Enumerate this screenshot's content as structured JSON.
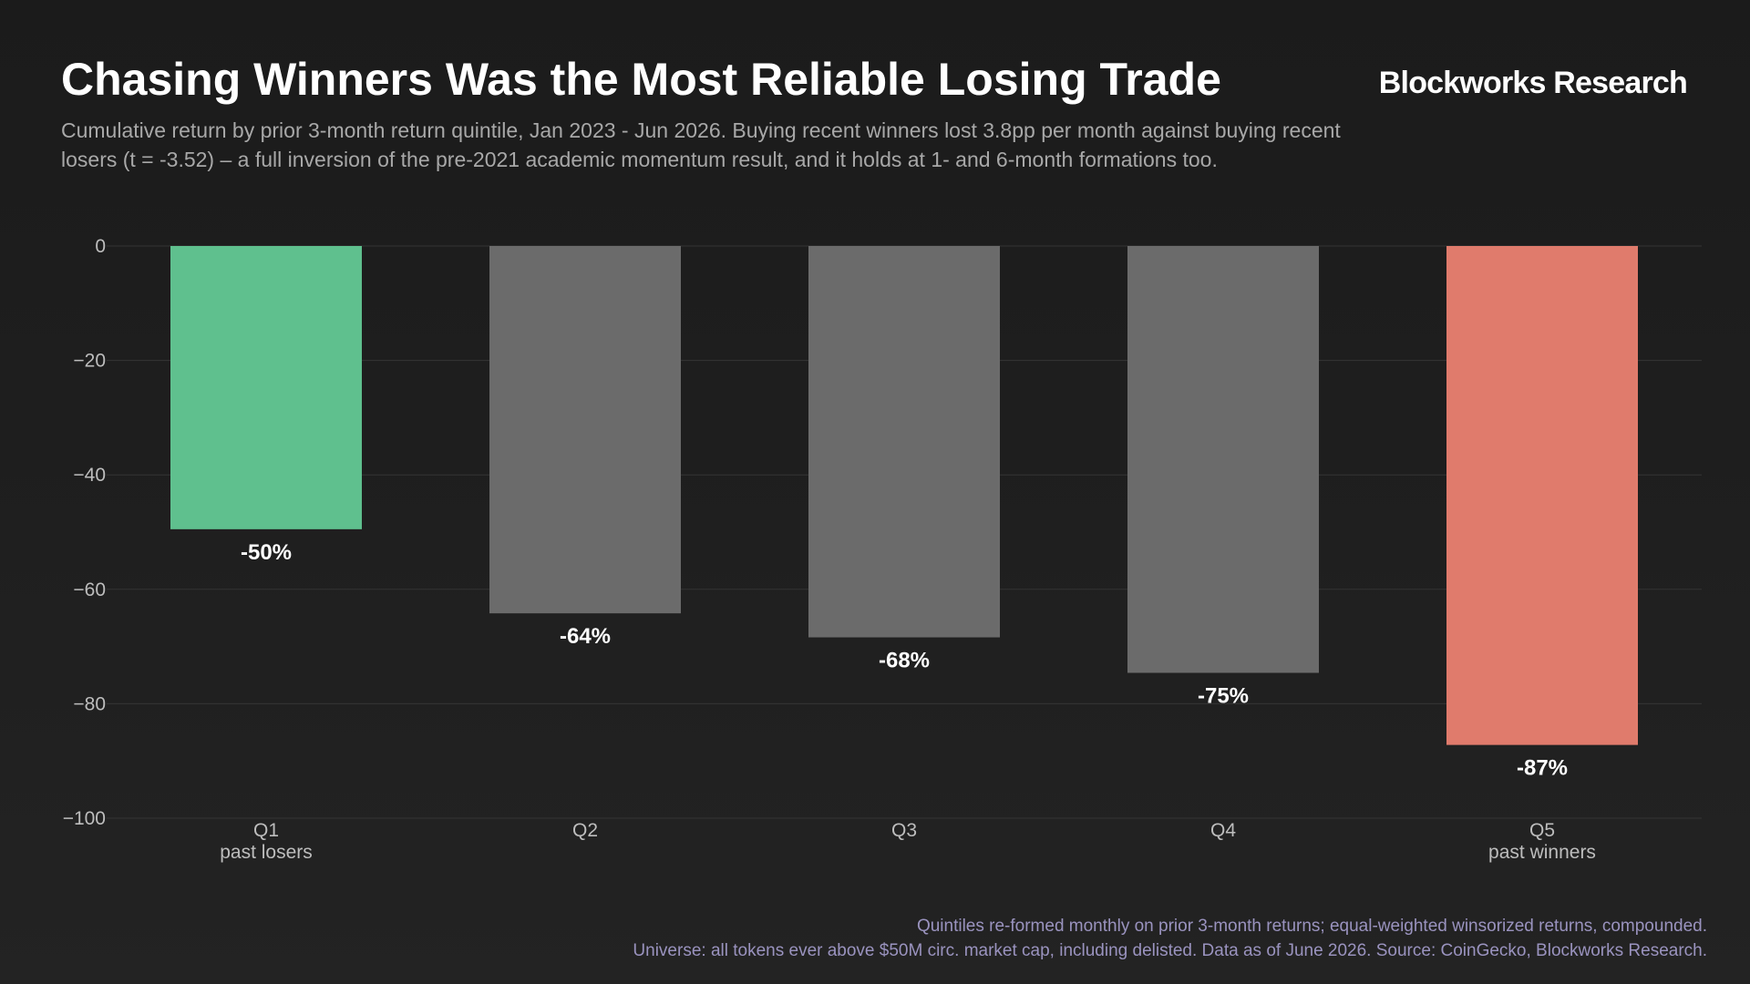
{
  "header": {
    "title": "Chasing Winners Was the Most Reliable Losing Trade",
    "brand": "Blockworks Research",
    "subtitle": "Cumulative return by prior 3-month return quintile, Jan 2023 - Jun 2026. Buying recent winners lost 3.8pp per month against buying recent losers (t = -3.52) – a full inversion of the pre-2021 academic momentum result, and it holds at 1- and 6-month formations too."
  },
  "footer": {
    "note_1": "Quintiles re-formed monthly on prior 3-month returns; equal-weighted winsorized returns, compounded.",
    "note_2": "Universe: all tokens ever above $50M circ. market cap, including delisted. Data as of June 2026. Source: CoinGecko, Blockworks Research."
  },
  "colors": {
    "background": "#1c1c1c",
    "gridline": "#353535",
    "losers_bar": "#5fc08e",
    "middle_bar": "#6b6b6b",
    "winners_bar": "#e07b6c"
  },
  "chart_data": {
    "type": "bar",
    "categories": [
      "Q1\npast losers",
      "Q2",
      "Q3",
      "Q4",
      "Q5\npast winners"
    ],
    "values": [
      -49.5,
      -64.2,
      -68.4,
      -74.6,
      -87.2
    ],
    "data_labels": [
      "-50%",
      "-64%",
      "-68%",
      "-75%",
      "-87%"
    ],
    "bar_colors": [
      "#5fc08e",
      "#6b6b6b",
      "#6b6b6b",
      "#6b6b6b",
      "#e07b6c"
    ],
    "title": "Chasing Winners Was the Most Reliable Losing Trade",
    "xlabel": "",
    "ylabel": "",
    "ylim": [
      -100,
      0
    ],
    "yticks": [
      0,
      -20,
      -40,
      -60,
      -80,
      -100
    ],
    "ytick_labels": [
      "0",
      "−20",
      "−40",
      "−60",
      "−80",
      "−100"
    ],
    "grid": true,
    "legend": "none"
  }
}
